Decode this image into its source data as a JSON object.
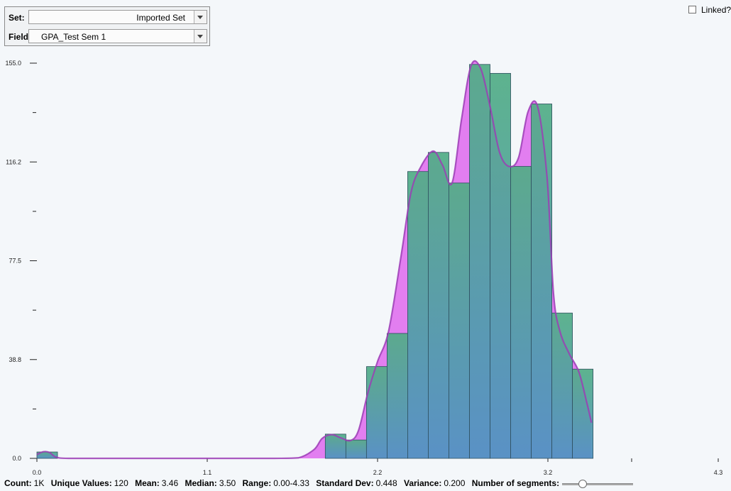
{
  "controls": {
    "set_label": "Set:",
    "set_value": "Imported Set",
    "field_label": "Field:",
    "field_value": "GPA_Test Sem 1",
    "linked_label": "Linked?",
    "linked_checked": false
  },
  "stats": {
    "count_label": "Count:",
    "count_value": "1K",
    "unique_label": "Unique Values:",
    "unique_value": "120",
    "mean_label": "Mean:",
    "mean_value": "3.46",
    "median_label": "Median:",
    "median_value": "3.50",
    "range_label": "Range:",
    "range_value": "0.00-4.33",
    "std_label": "Standard Dev:",
    "std_value": "0.448",
    "variance_label": "Variance:",
    "variance_value": "0.200",
    "segments_label": "Number of segments:",
    "segments_slider_fraction": 0.26
  },
  "colors": {
    "bar_green": "#52ad86",
    "bar_blue": "#4f93c2",
    "density_fill": "#e27ef0",
    "density_stroke": "#9b3db5",
    "background": "#f4f7fa"
  },
  "chart_data": {
    "type": "bar",
    "title": "",
    "xlabel": "",
    "ylabel": "",
    "xlim": [
      0,
      4.3
    ],
    "ylim": [
      0,
      155
    ],
    "x_tick_labels": [
      "0.0",
      "1.1",
      "2.2",
      "3.2",
      "4.3"
    ],
    "x_ticks": [
      0,
      1.075,
      2.15,
      3.225,
      4.3
    ],
    "y_tick_labels": [
      "0.0",
      "38.8",
      "77.5",
      "116.2",
      "155.0"
    ],
    "y_ticks": [
      0,
      38.75,
      77.5,
      116.25,
      155
    ],
    "bar_width": 0.13,
    "bars": [
      {
        "x0": 0.0,
        "value": 2.5
      },
      {
        "x0": 1.82,
        "value": 9.5
      },
      {
        "x0": 1.95,
        "value": 7.2
      },
      {
        "x0": 2.08,
        "value": 36.0
      },
      {
        "x0": 2.21,
        "value": 49.0
      },
      {
        "x0": 2.34,
        "value": 112.5
      },
      {
        "x0": 2.47,
        "value": 120.0
      },
      {
        "x0": 2.6,
        "value": 108.0
      },
      {
        "x0": 2.73,
        "value": 154.5
      },
      {
        "x0": 2.86,
        "value": 151.0
      },
      {
        "x0": 2.99,
        "value": 114.5
      },
      {
        "x0": 3.12,
        "value": 139.0
      },
      {
        "x0": 3.25,
        "value": 57.0
      },
      {
        "x0": 3.38,
        "value": 35.0
      }
    ],
    "density": {
      "x": [
        0.0,
        0.04,
        0.08,
        0.12,
        0.2,
        0.5,
        1.0,
        1.5,
        1.65,
        1.75,
        1.8,
        1.86,
        1.92,
        1.98,
        2.03,
        2.09,
        2.15,
        2.22,
        2.3,
        2.36,
        2.42,
        2.5,
        2.56,
        2.62,
        2.68,
        2.74,
        2.8,
        2.86,
        2.92,
        2.98,
        3.04,
        3.1,
        3.16,
        3.22,
        3.26,
        3.3,
        3.36,
        3.42,
        3.47,
        3.5
      ],
      "y": [
        1.5,
        2.6,
        2.3,
        0.5,
        0.0,
        0.0,
        0.0,
        0.0,
        0.2,
        3.5,
        7.8,
        9.3,
        8.0,
        7.0,
        11.0,
        26.0,
        38.0,
        50.0,
        80.0,
        104.0,
        114.0,
        120.5,
        115.0,
        108.0,
        133.0,
        154.0,
        153.0,
        138.0,
        120.0,
        114.5,
        118.0,
        136.0,
        138.0,
        110.0,
        65.0,
        50.0,
        41.0,
        34.0,
        22.0,
        14.0
      ]
    }
  }
}
